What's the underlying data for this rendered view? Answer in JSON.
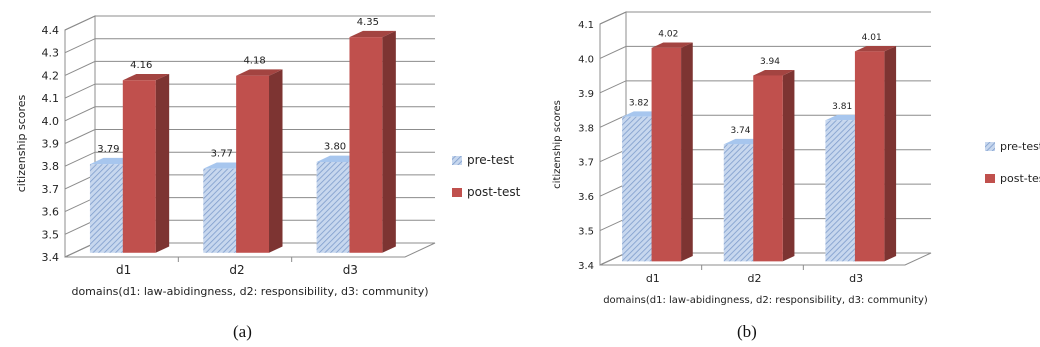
{
  "chart_data": [
    {
      "type": "bar",
      "panel_label": "(a)",
      "categories": [
        "d1",
        "d2",
        "d3"
      ],
      "xlabel": "domains(d1: law-abidingness, d2: responsibility, d3: community)",
      "ylabel": "citizenship scores",
      "ylim": [
        3.4,
        4.4
      ],
      "ytick_step": 0.1,
      "grid": true,
      "legend_position": "right",
      "series": [
        {
          "name": "pre-test",
          "values": [
            3.79,
            3.77,
            3.8
          ],
          "labels": [
            "3.79",
            "3.77",
            "3.80"
          ],
          "color": "#9bb7dc"
        },
        {
          "name": "post-test",
          "values": [
            4.16,
            4.18,
            4.35
          ],
          "labels": [
            "4.16",
            "4.18",
            "4.35"
          ],
          "color": "#c0504d"
        }
      ]
    },
    {
      "type": "bar",
      "panel_label": "(b)",
      "categories": [
        "d1",
        "d2",
        "d3"
      ],
      "xlabel": "domains(d1: law-abidingness, d2: responsibility, d3: community)",
      "ylabel": "citizenship scores",
      "ylim": [
        3.4,
        4.1
      ],
      "ytick_step": 0.1,
      "grid": true,
      "legend_position": "right",
      "series": [
        {
          "name": "pre-test",
          "values": [
            3.82,
            3.74,
            3.81
          ],
          "labels": [
            "3.82",
            "3.74",
            "3.81"
          ],
          "color": "#9bb7dc"
        },
        {
          "name": "post-test",
          "values": [
            4.02,
            3.94,
            4.01
          ],
          "labels": [
            "4.02",
            "3.94",
            "4.01"
          ],
          "color": "#c0504d"
        }
      ]
    }
  ]
}
